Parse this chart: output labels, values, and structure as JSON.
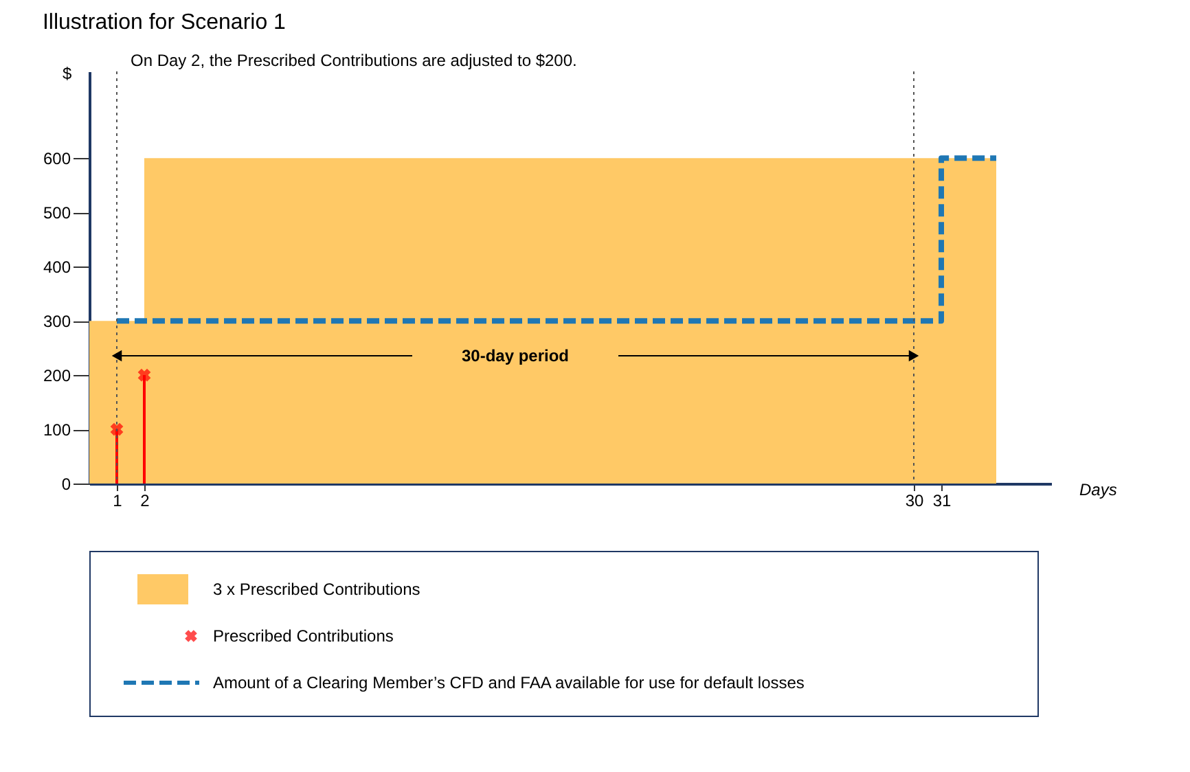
{
  "chart_data": {
    "type": "step",
    "title": "Illustration for Scenario 1",
    "xlabel": "Days",
    "ylabel": "$",
    "xlim": [
      0,
      35
    ],
    "ylim": [
      0,
      760
    ],
    "xticks": [
      1,
      2,
      30,
      31
    ],
    "yticks": [
      0,
      100,
      200,
      300,
      400,
      500,
      600
    ],
    "series": [
      {
        "name": "3 x Prescribed Contributions",
        "type": "area",
        "color": "#ffc966",
        "x": [
          0,
          2,
          33
        ],
        "values": [
          300,
          600,
          600
        ]
      },
      {
        "name": "Prescribed Contributions",
        "type": "lollipop",
        "color": "#ff0000",
        "marker": "cross",
        "x": [
          1,
          2
        ],
        "values": [
          100,
          200
        ]
      },
      {
        "name": "Amount of a Clearing Member’s CFD and FAA available for use for default losses",
        "color": "#1f77b4",
        "line_style": "dashed",
        "x": [
          1,
          31,
          33
        ],
        "values": [
          300,
          600,
          600
        ]
      }
    ],
    "ref_lines": [
      {
        "axis": "x",
        "value": 1,
        "line_style": "dotted",
        "color": "#555555"
      },
      {
        "axis": "x",
        "value": 30,
        "line_style": "dotted",
        "color": "#555555"
      }
    ],
    "annotations": [
      "On Day 2, the Prescribed Contributions are adjusted to $200.",
      "30-day period"
    ],
    "legend": "bottom",
    "grid": false
  }
}
